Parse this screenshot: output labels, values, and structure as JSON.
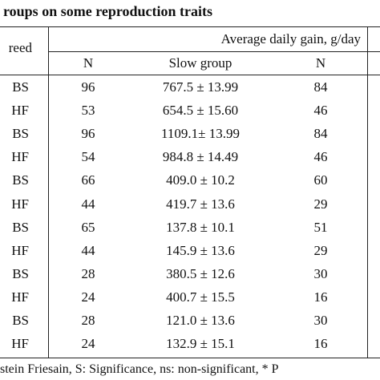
{
  "title": "roups on some reproduction traits",
  "header": {
    "breed": "reed",
    "group": "Average daily gain, g/day",
    "n1": "N",
    "slow": "Slow group",
    "n2": "N"
  },
  "rows": [
    {
      "breed": "BS",
      "n": "96",
      "slow": "767.5 ± 13.99",
      "n2": "84"
    },
    {
      "breed": "HF",
      "n": "53",
      "slow": "654.5 ± 15.60",
      "n2": "46"
    },
    {
      "breed": "BS",
      "n": "96",
      "slow": "1109.1± 13.99",
      "n2": "84"
    },
    {
      "breed": "HF",
      "n": "54",
      "slow": "984.8 ± 14.49",
      "n2": "46"
    },
    {
      "breed": "BS",
      "n": "66",
      "slow": "409.0 ± 10.2",
      "n2": "60"
    },
    {
      "breed": "HF",
      "n": "44",
      "slow": "419.7 ± 13.6",
      "n2": "29"
    },
    {
      "breed": "BS",
      "n": "65",
      "slow": "137.8 ± 10.1",
      "n2": "51"
    },
    {
      "breed": "HF",
      "n": "44",
      "slow": "145.9 ± 13.6",
      "n2": "29"
    },
    {
      "breed": "BS",
      "n": "28",
      "slow": "380.5 ± 12.6",
      "n2": "30"
    },
    {
      "breed": "HF",
      "n": "24",
      "slow": "400.7 ± 15.5",
      "n2": "16"
    },
    {
      "breed": "BS",
      "n": "28",
      "slow": "121.0 ± 13.6",
      "n2": "30"
    },
    {
      "breed": "HF",
      "n": "24",
      "slow": "132.9 ± 15.1",
      "n2": "16"
    }
  ],
  "footnote": "stein Friesain, S: Significance, ns: non-significant, * P"
}
